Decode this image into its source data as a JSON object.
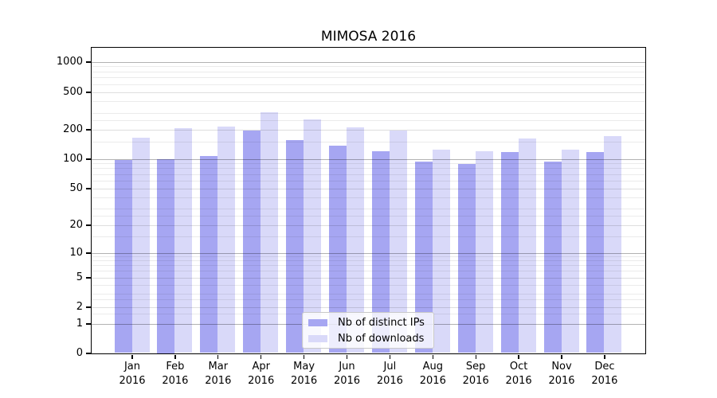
{
  "title": "MIMOSA 2016",
  "legend": {
    "items": [
      {
        "label": "Nb of distinct IPs",
        "color": "#a6a6f2"
      },
      {
        "label": "Nb of downloads",
        "color": "#d9d9f9"
      }
    ]
  },
  "chart_data": {
    "type": "bar",
    "title": "MIMOSA 2016",
    "categories": [
      "Jan",
      "Feb",
      "Mar",
      "Apr",
      "May",
      "Jun",
      "Jul",
      "Aug",
      "Sep",
      "Oct",
      "Nov",
      "Dec"
    ],
    "category_year": "2016",
    "series": [
      {
        "name": "Nb of distinct IPs",
        "color": "#a6a6f2",
        "values": [
          97,
          100,
          106,
          196,
          155,
          135,
          120,
          94,
          88,
          118,
          93,
          118
        ]
      },
      {
        "name": "Nb of downloads",
        "color": "#d9d9f9",
        "values": [
          165,
          205,
          215,
          305,
          255,
          212,
          196,
          123,
          120,
          162,
          123,
          172
        ]
      }
    ],
    "xlabel": "",
    "ylabel": "",
    "yscale": "symlog",
    "yticks": [
      0,
      1,
      2,
      5,
      10,
      20,
      50,
      100,
      200,
      500,
      1000
    ],
    "ylim": [
      0,
      1400
    ],
    "grid": "both",
    "legend_position": "lower center inside"
  },
  "colors": {
    "bar_ips": "#a6a6f2",
    "bar_downloads": "#d9d9f9",
    "grid_major": "rgba(0,0,0,0.30)",
    "grid_labeled_minor": "rgba(0,0,0,0.13)",
    "grid_minor": "rgba(0,0,0,0.08)",
    "axis": "#000000",
    "text": "#000000"
  }
}
